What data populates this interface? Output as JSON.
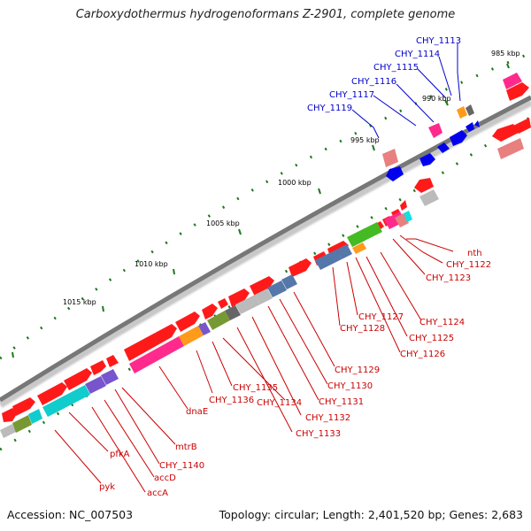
{
  "title": "Carboxydothermus hydrogenoformans Z-2901, complete genome",
  "footer": {
    "accession": "Accession: NC_007503",
    "summary": "Topology: circular; Length: 2,401,520 bp; Genes: 2,683"
  },
  "kbp_ticks": [
    {
      "label": "985 kbp"
    },
    {
      "label": "990 kbp"
    },
    {
      "label": "995 kbp"
    },
    {
      "label": "1000 kbp"
    },
    {
      "label": "1005 kbp"
    },
    {
      "label": "1010 kbp"
    },
    {
      "label": "1015 kbp"
    }
  ],
  "gene_labels_top": [
    "CHY_1113",
    "CHY_1114",
    "CHY_1115",
    "CHY_1116",
    "CHY_1117",
    "CHY_1119"
  ],
  "gene_labels_bottom": [
    "nth",
    "CHY_1122",
    "CHY_1123",
    "CHY_1124",
    "CHY_1125",
    "CHY_1126",
    "CHY_1127",
    "CHY_1128",
    "CHY_1129",
    "CHY_1130",
    "CHY_1131",
    "CHY_1132",
    "CHY_1133",
    "CHY_1134",
    "CHY_1135",
    "CHY_1136",
    "dnaE",
    "mtrB",
    "CHY_1140",
    "accD",
    "accA",
    "pfkA",
    "pyk"
  ],
  "colors": {
    "backbone": "#777777",
    "tick_green": "#1a7a1a",
    "label_blue": "#0000cc",
    "label_red": "#cc0000",
    "gene_red": "#ff1a1a",
    "gene_blue": "#0000ee",
    "gene_pink": "#ff2a8c",
    "gene_orange": "#ff9a1a",
    "gene_green": "#44bb22",
    "gene_cyan": "#11cccc",
    "gene_slate": "#5577aa",
    "gene_violet": "#7755cc",
    "gene_gray": "#bbbbbb",
    "gene_olive": "#779933",
    "gene_salmon": "#e88080"
  }
}
